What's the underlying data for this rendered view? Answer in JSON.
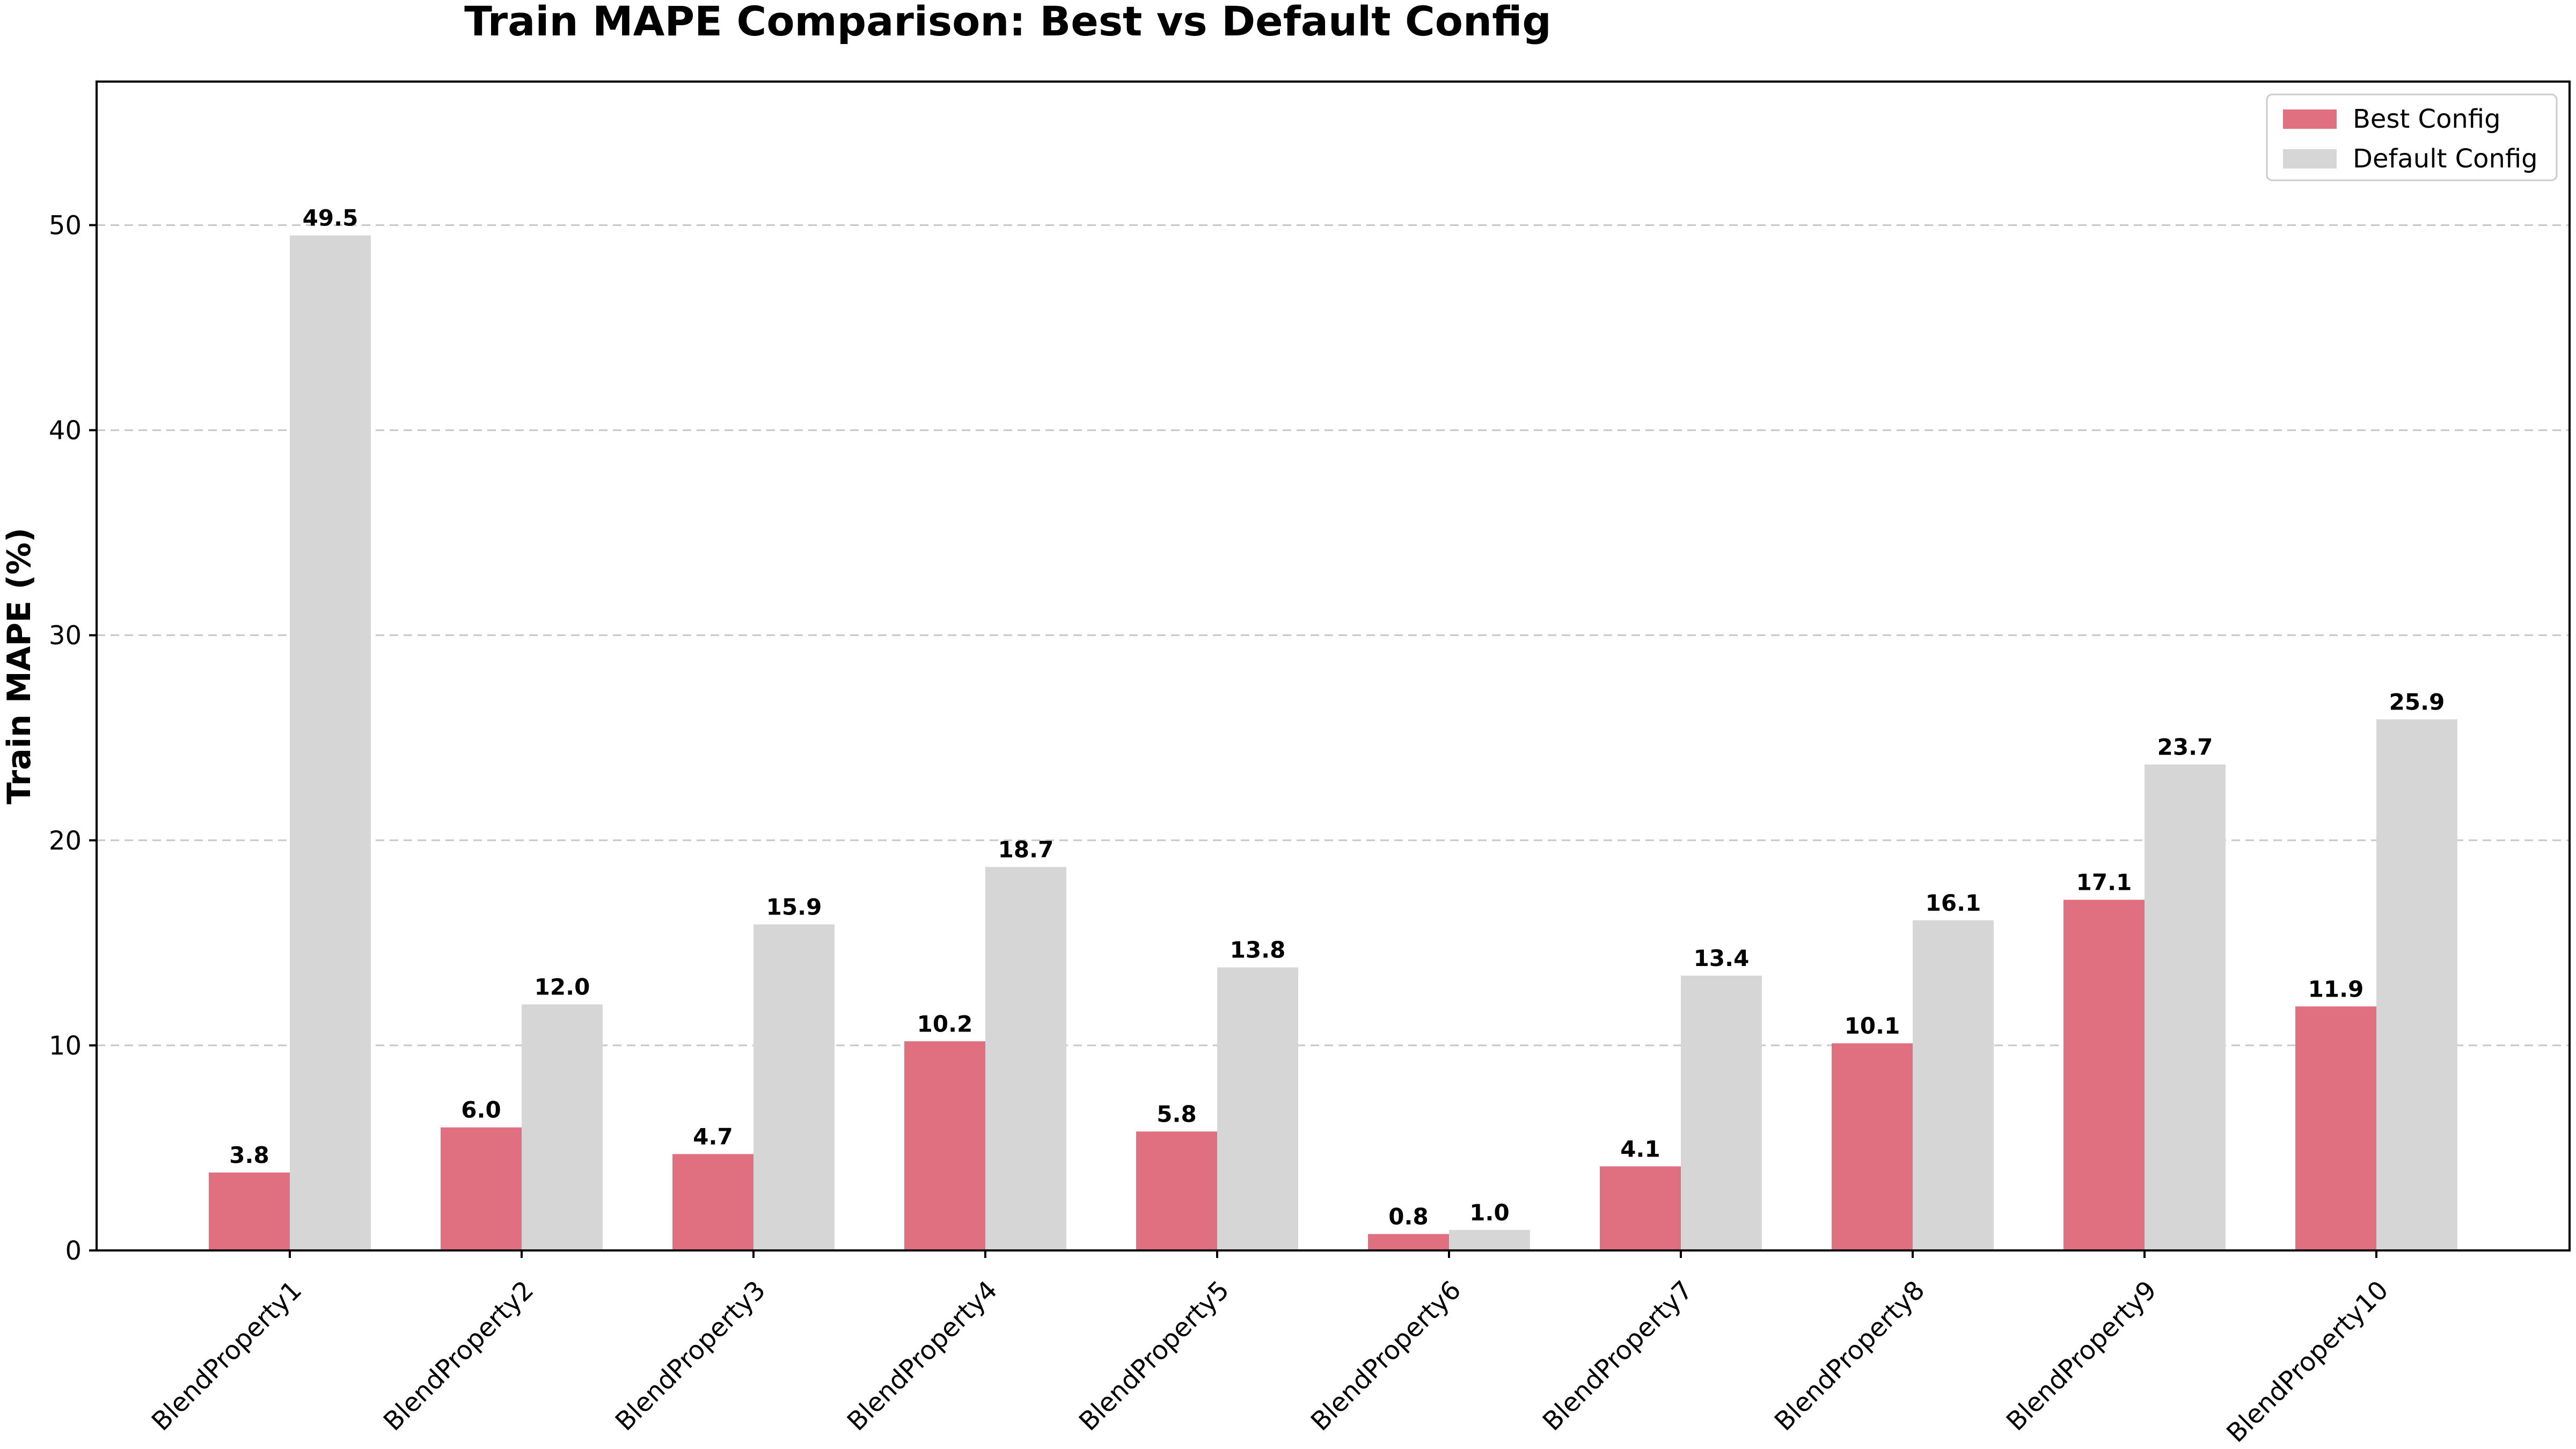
{
  "chart_data": {
    "type": "bar",
    "title": "Train MAPE Comparison: Best vs Default Config",
    "xlabel": "",
    "ylabel": "Train MAPE (%)",
    "ylim": [
      0,
      57
    ],
    "yticks": [
      0,
      10,
      20,
      30,
      40,
      50
    ],
    "grid": "y-dashed",
    "legend_position": "top-right",
    "categories": [
      "BlendProperty1",
      "BlendProperty2",
      "BlendProperty3",
      "BlendProperty4",
      "BlendProperty5",
      "BlendProperty6",
      "BlendProperty7",
      "BlendProperty8",
      "BlendProperty9",
      "BlendProperty10"
    ],
    "series": [
      {
        "name": "Best Config",
        "color": "#e07080",
        "values": [
          3.8,
          6.0,
          4.7,
          10.2,
          5.8,
          0.8,
          4.1,
          10.1,
          17.1,
          11.9
        ],
        "labels": [
          "3.8",
          "6.0",
          "4.7",
          "10.2",
          "5.8",
          "0.8",
          "4.1",
          "10.1",
          "17.1",
          "11.9"
        ]
      },
      {
        "name": "Default Config",
        "color": "#d6d6d6",
        "values": [
          49.5,
          12.0,
          15.9,
          18.7,
          13.8,
          1.0,
          13.4,
          16.1,
          23.7,
          25.9
        ],
        "labels": [
          "49.5",
          "12.0",
          "15.9",
          "18.7",
          "13.8",
          "1.0",
          "13.4",
          "16.1",
          "23.7",
          "25.9"
        ]
      }
    ]
  }
}
